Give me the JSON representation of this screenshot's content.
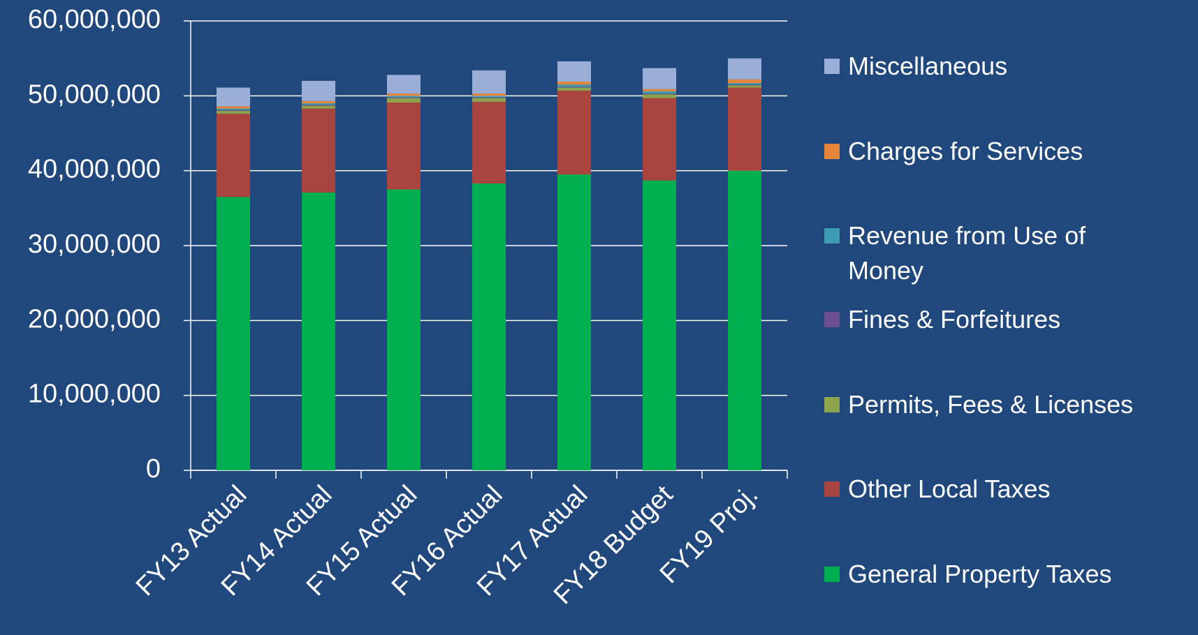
{
  "chart_data": {
    "type": "stacked-bar",
    "categories": [
      "FY13 Actual",
      "FY14 Actual",
      "FY15 Actual",
      "FY16 Actual",
      "FY17 Actual",
      "FY18 Budget",
      "FY19 Proj."
    ],
    "series": [
      {
        "name": "General Property Taxes",
        "color": "#00b050",
        "values": [
          36500000,
          37100000,
          37500000,
          38300000,
          39500000,
          38700000,
          40000000
        ]
      },
      {
        "name": "Other Local Taxes",
        "color": "#a9443f",
        "values": [
          11100000,
          11200000,
          11600000,
          10900000,
          11200000,
          11000000,
          11100000
        ]
      },
      {
        "name": "Permits, Fees & Licenses",
        "color": "#8ea44c",
        "values": [
          400000,
          400000,
          600000,
          500000,
          400000,
          500000,
          300000
        ]
      },
      {
        "name": "Fines & Forfeitures",
        "color": "#6d4e8e",
        "values": [
          100000,
          100000,
          100000,
          100000,
          100000,
          100000,
          100000
        ]
      },
      {
        "name": "Revenue from Use of Money",
        "color": "#3f9bb4",
        "values": [
          200000,
          200000,
          200000,
          200000,
          300000,
          300000,
          200000
        ]
      },
      {
        "name": "Charges for Services",
        "color": "#e5873b",
        "values": [
          300000,
          300000,
          300000,
          300000,
          400000,
          300000,
          500000
        ]
      },
      {
        "name": "Miscellaneous",
        "color": "#9aaed8",
        "values": [
          2500000,
          2700000,
          2500000,
          3100000,
          2700000,
          2800000,
          2800000
        ]
      }
    ],
    "ylim": [
      0,
      60000000
    ],
    "yticks": [
      0,
      {
        "value": 10000000,
        "label": "10,000,000"
      },
      {
        "value": 20000000,
        "label": "20,000,000"
      },
      {
        "value": 30000000,
        "label": "30,000,000"
      },
      {
        "value": 40000000,
        "label": "40,000,000"
      },
      {
        "value": 50000000,
        "label": "50,000,000"
      },
      {
        "value": 60000000,
        "label": "60,000,000"
      }
    ],
    "grid": true,
    "legend": "right"
  }
}
